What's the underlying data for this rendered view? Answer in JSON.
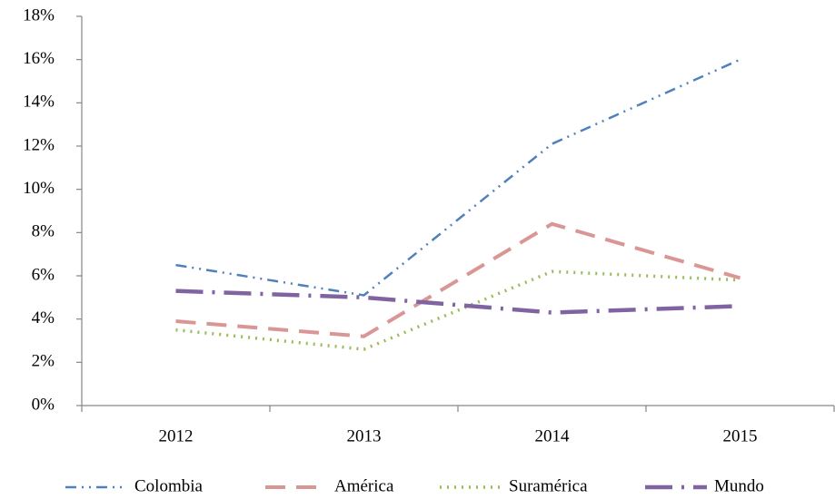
{
  "chart_data": {
    "type": "line",
    "categories": [
      "2012",
      "2013",
      "2014",
      "2015"
    ],
    "series": [
      {
        "name": "Colombia",
        "color": "#4f81bd",
        "values": [
          6.5,
          5.1,
          12.1,
          16.0
        ]
      },
      {
        "name": "América",
        "color": "#d99694",
        "values": [
          3.9,
          3.2,
          8.4,
          5.9
        ]
      },
      {
        "name": "Suramérica",
        "color": "#9bbb59",
        "values": [
          3.5,
          2.6,
          6.2,
          5.8
        ]
      },
      {
        "name": "Mundo",
        "color": "#8064a2",
        "values": [
          5.3,
          5.0,
          4.3,
          4.6
        ]
      }
    ],
    "ylim": [
      0,
      18
    ],
    "yticks": [
      {
        "value": 0,
        "label": "0%"
      },
      {
        "value": 2,
        "label": "2%"
      },
      {
        "value": 4,
        "label": "4%"
      },
      {
        "value": 6,
        "label": "6%"
      },
      {
        "value": 8,
        "label": "8%"
      },
      {
        "value": 10,
        "label": "10%"
      },
      {
        "value": 12,
        "label": "12%"
      },
      {
        "value": 14,
        "label": "14%"
      },
      {
        "value": 16,
        "label": "16%"
      },
      {
        "value": 18,
        "label": "18%"
      }
    ],
    "grid": false,
    "legend": "bottom"
  }
}
